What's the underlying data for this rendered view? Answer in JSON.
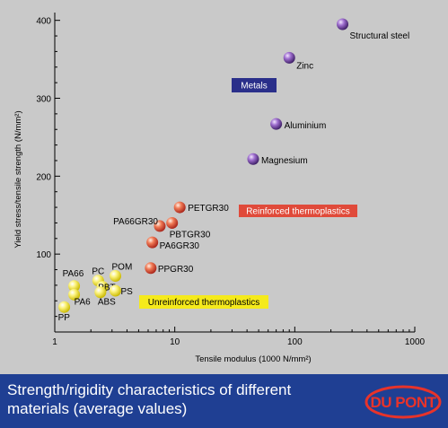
{
  "chart_data": {
    "type": "scatter",
    "xscale": "log",
    "xlim": [
      1,
      1000
    ],
    "ylim": [
      0,
      410
    ],
    "xlabel": "Tensile modulus (1000 N/mm²)",
    "ylabel": "Yield stress/tensile strength (N/mm²)",
    "xticks": [
      "1",
      "10",
      "100",
      "1000"
    ],
    "yticks": [
      "100",
      "200",
      "300",
      "400"
    ],
    "groups": [
      {
        "name": "Metals",
        "color": "#8a5ab8",
        "label_bg": "#2a2f8a",
        "label_fg": "#ffffff",
        "points": [
          {
            "label": "Structural steel",
            "x": 250,
            "y": 395
          },
          {
            "label": "Zinc",
            "x": 90,
            "y": 352
          },
          {
            "label": "Aluminium",
            "x": 70,
            "y": 267
          },
          {
            "label": "Magnesium",
            "x": 45,
            "y": 222
          }
        ]
      },
      {
        "name": "Reinforced thermoplastics",
        "color": "#e8503c",
        "label_bg": "#e04a3a",
        "label_fg": "#ffffff",
        "points": [
          {
            "label": "PETGR30",
            "x": 11,
            "y": 160
          },
          {
            "label": "PBTGR30",
            "x": 9.5,
            "y": 140
          },
          {
            "label": "PA66GR30",
            "x": 7.5,
            "y": 136
          },
          {
            "label": "PA6GR30",
            "x": 6.5,
            "y": 115
          },
          {
            "label": "PPGR30",
            "x": 6.3,
            "y": 82
          }
        ]
      },
      {
        "name": "Unreinforced thermoplastics",
        "color": "#f5e642",
        "label_bg": "#f5ea1c",
        "label_fg": "#000000",
        "points": [
          {
            "label": "POM",
            "x": 3.2,
            "y": 72
          },
          {
            "label": "PC",
            "x": 2.3,
            "y": 66
          },
          {
            "label": "PA66",
            "x": 1.45,
            "y": 59
          },
          {
            "label": "PBT",
            "x": 2.5,
            "y": 58
          },
          {
            "label": "PS",
            "x": 3.2,
            "y": 53
          },
          {
            "label": "ABS",
            "x": 2.4,
            "y": 51
          },
          {
            "label": "PA6",
            "x": 1.45,
            "y": 48
          },
          {
            "label": "PP",
            "x": 1.2,
            "y": 32
          }
        ]
      }
    ]
  },
  "caption": {
    "line1": "Strength/rigidity characteristics of different",
    "line2": "materials (average values)"
  },
  "logo": {
    "text": "DU PONT",
    "color": "#e8332a"
  }
}
